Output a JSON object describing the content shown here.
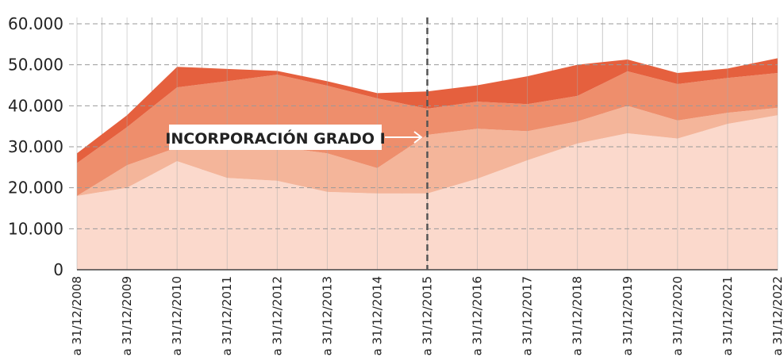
{
  "chart_data": {
    "type": "stacked_area",
    "categories": [
      "a 31/12/2008",
      "a 31/12/2009",
      "a 31/12/2010",
      "a 31/12/2011",
      "a 31/12/2012",
      "a 31/12/2013",
      "a 31/12/2014",
      "a 31/12/2015",
      "a 31/12/2016",
      "a 31/12/2017",
      "a 31/12/2018",
      "a 31/12/2019",
      "a 31/12/2020",
      "a 31/12/2021",
      "a 31/12/2022"
    ],
    "series": [
      {
        "color": "#fbd9cc",
        "values": [
          18000,
          20000,
          26500,
          22400,
          21700,
          19000,
          18600,
          18600,
          22200,
          26700,
          30800,
          33300,
          32000,
          35600,
          37700
        ]
      },
      {
        "color": "#f4b59a",
        "values": [
          0,
          5500,
          3300,
          7400,
          8300,
          9400,
          6200,
          14300,
          12200,
          7100,
          5400,
          6700,
          4400,
          2700,
          1800
        ]
      },
      {
        "color": "#ee8e6c",
        "values": [
          8000,
          9300,
          14700,
          16200,
          17600,
          16500,
          17000,
          6400,
          6600,
          6600,
          6200,
          8400,
          8900,
          8500,
          8500
        ]
      },
      {
        "color": "#e5603e",
        "values": [
          2400,
          2900,
          5000,
          3000,
          900,
          1100,
          1300,
          4200,
          4000,
          6800,
          7600,
          2900,
          2700,
          2300,
          3600
        ]
      }
    ],
    "ylim": [
      0,
      60000
    ],
    "yticks": [
      0,
      {
        "value": 10000,
        "label": "10.000"
      },
      {
        "value": 20000,
        "label": "20.000"
      },
      {
        "value": 30000,
        "label": "30.000"
      },
      {
        "value": 40000,
        "label": "40.000"
      },
      {
        "value": 50000,
        "label": "50.000"
      },
      {
        "value": 60000,
        "label": "60.000"
      }
    ],
    "grid": true,
    "annotation": {
      "text": "INCORPORACIÓN GRADO I",
      "x": "a 31/12/2015"
    }
  }
}
